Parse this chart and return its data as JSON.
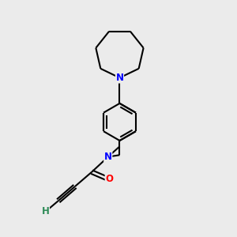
{
  "bg_color": "#ebebeb",
  "bond_color": "#000000",
  "N_color": "#0000ff",
  "O_color": "#ff0000",
  "H_color": "#2e8b57",
  "line_width": 1.5,
  "figsize": [
    3.0,
    3.0
  ],
  "dpi": 100,
  "xlim": [
    0,
    10
  ],
  "ylim": [
    0,
    10
  ]
}
